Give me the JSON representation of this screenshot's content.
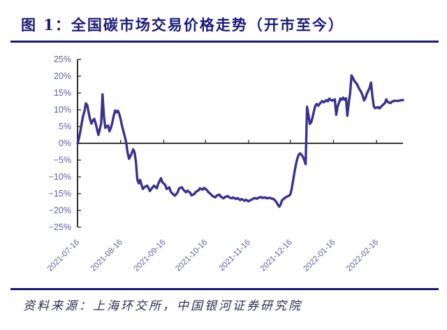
{
  "figure": {
    "title": "图 1：全国碳市场交易价格走势（开市至今）",
    "source_note": "资料来源：上海环交所，中国银河证券研究院"
  },
  "colors": {
    "accent_navy": "#1b1b78",
    "line": "#3a3190",
    "axis": "#1a1a1a",
    "tick_label": "#60609f",
    "background": "#ffffff"
  },
  "chart_data": {
    "type": "line",
    "title": "全国碳市场交易价格走势（开市至今）",
    "xlabel": "",
    "ylabel": "",
    "ylim": [
      -25,
      25
    ],
    "y_tick_step": 5,
    "y_tick_format": "percent",
    "grid": false,
    "legend": "none",
    "x_unit": "days_since_2021-07-16",
    "x_range_days": [
      0,
      234
    ],
    "x_ticks": [
      {
        "day": 0,
        "label": "2021-07-16"
      },
      {
        "day": 31,
        "label": "2021-08-16"
      },
      {
        "day": 62,
        "label": "2021-09-16"
      },
      {
        "day": 92,
        "label": "2021-10-16"
      },
      {
        "day": 123,
        "label": "2021-11-16"
      },
      {
        "day": 153,
        "label": "2021-12-16"
      },
      {
        "day": 184,
        "label": "2022-01-16"
      },
      {
        "day": 215,
        "label": "2022-02-16"
      }
    ],
    "series": [
      {
        "name": "price_change_percent",
        "color": "#3a3190",
        "points": [
          [
            0,
            0
          ],
          [
            1,
            1.5
          ],
          [
            2,
            3.5
          ],
          [
            3,
            6
          ],
          [
            4,
            8.2
          ],
          [
            5,
            9.6
          ],
          [
            6,
            11.9
          ],
          [
            7,
            11.4
          ],
          [
            8,
            9.2
          ],
          [
            9,
            7.2
          ],
          [
            10,
            5.9
          ],
          [
            11,
            6.8
          ],
          [
            12,
            7.3
          ],
          [
            13,
            6
          ],
          [
            14,
            4.3
          ],
          [
            15,
            2.5
          ],
          [
            16,
            4.2
          ],
          [
            17,
            6
          ],
          [
            18,
            14.6
          ],
          [
            19,
            8
          ],
          [
            20,
            4.6
          ],
          [
            21,
            5.1
          ],
          [
            22,
            5.3
          ],
          [
            23,
            3.6
          ],
          [
            24,
            4.6
          ],
          [
            25,
            6.2
          ],
          [
            26,
            8.2
          ],
          [
            27,
            9.8
          ],
          [
            28,
            9.2
          ],
          [
            29,
            9.7
          ],
          [
            30,
            8.8
          ],
          [
            31,
            7.2
          ],
          [
            32,
            5.2
          ],
          [
            33,
            3.6
          ],
          [
            34,
            2
          ],
          [
            35,
            0.2
          ],
          [
            36,
            -2.8
          ],
          [
            37,
            -4.6
          ],
          [
            38,
            -3.8
          ],
          [
            39,
            -2.9
          ],
          [
            40,
            -1.8
          ],
          [
            41,
            -2.6
          ],
          [
            42,
            -5.5
          ],
          [
            43,
            -10.8
          ],
          [
            44,
            -11.9
          ],
          [
            45,
            -10.9
          ],
          [
            46,
            -12.4
          ],
          [
            47,
            -13.6
          ],
          [
            48,
            -13.1
          ],
          [
            50,
            -12.6
          ],
          [
            51,
            -13.3
          ],
          [
            52,
            -14.2
          ],
          [
            54,
            -13.1
          ],
          [
            55,
            -12.6
          ],
          [
            57,
            -13.4
          ],
          [
            58,
            -12.1
          ],
          [
            60,
            -10.4
          ],
          [
            61,
            -11.6
          ],
          [
            63,
            -12.4
          ],
          [
            64,
            -13.6
          ],
          [
            66,
            -13.1
          ],
          [
            67,
            -14.4
          ],
          [
            69,
            -15.3
          ],
          [
            70,
            -15.6
          ],
          [
            72,
            -14.6
          ],
          [
            73,
            -13.4
          ],
          [
            75,
            -13.1
          ],
          [
            76,
            -13.8
          ],
          [
            78,
            -14.6
          ],
          [
            79,
            -14.1
          ],
          [
            81,
            -14.7
          ],
          [
            82,
            -15.5
          ],
          [
            84,
            -15.1
          ],
          [
            85,
            -14.5
          ],
          [
            87,
            -14
          ],
          [
            88,
            -13.4
          ],
          [
            90,
            -13.8
          ],
          [
            91,
            -13.3
          ],
          [
            93,
            -13.9
          ],
          [
            94,
            -14.5
          ],
          [
            96,
            -15.2
          ],
          [
            97,
            -15.7
          ],
          [
            99,
            -16.1
          ],
          [
            100,
            -15.6
          ],
          [
            102,
            -15.3
          ],
          [
            103,
            -15.9
          ],
          [
            105,
            -16.4
          ],
          [
            106,
            -16
          ],
          [
            108,
            -15.7
          ],
          [
            109,
            -16.1
          ],
          [
            111,
            -16.4
          ],
          [
            112,
            -16.1
          ],
          [
            114,
            -16.6
          ],
          [
            115,
            -16.3
          ],
          [
            117,
            -16.9
          ],
          [
            118,
            -16.6
          ],
          [
            120,
            -17.1
          ],
          [
            121,
            -16.8
          ],
          [
            123,
            -17.3
          ],
          [
            124,
            -17
          ],
          [
            126,
            -16.6
          ],
          [
            127,
            -16.3
          ],
          [
            129,
            -16.5
          ],
          [
            130,
            -16.2
          ],
          [
            132,
            -16
          ],
          [
            133,
            -16.3
          ],
          [
            135,
            -16.1
          ],
          [
            136,
            -16.4
          ],
          [
            138,
            -16.2
          ],
          [
            139,
            -16.4
          ],
          [
            141,
            -16.6
          ],
          [
            143,
            -17.5
          ],
          [
            144,
            -18.3
          ],
          [
            145,
            -18.9
          ],
          [
            146,
            -18.2
          ],
          [
            147,
            -17
          ],
          [
            149,
            -16.3
          ],
          [
            150,
            -16
          ],
          [
            151,
            -15.8
          ],
          [
            152,
            -15.6
          ],
          [
            153,
            -15.2
          ],
          [
            154,
            -13.5
          ],
          [
            155,
            -11
          ],
          [
            156,
            -8.5
          ],
          [
            157,
            -6.3
          ],
          [
            158,
            -4.6
          ],
          [
            159,
            -3.4
          ],
          [
            160,
            -3
          ],
          [
            161,
            -3.4
          ],
          [
            162,
            -4
          ],
          [
            163,
            -5
          ],
          [
            164,
            -6.2
          ],
          [
            165,
            10.9
          ],
          [
            166,
            8.5
          ],
          [
            167,
            5.8
          ],
          [
            168,
            6.3
          ],
          [
            169,
            7.8
          ],
          [
            170,
            9.6
          ],
          [
            171,
            11.2
          ],
          [
            172,
            11.7
          ],
          [
            173,
            11.2
          ],
          [
            175,
            12.2
          ],
          [
            176,
            12.6
          ],
          [
            177,
            12.2
          ],
          [
            179,
            12.9
          ],
          [
            180,
            12.5
          ],
          [
            181,
            13.3
          ],
          [
            183,
            12.7
          ],
          [
            185,
            13.1
          ],
          [
            186,
            8.5
          ],
          [
            187,
            11
          ],
          [
            188,
            12.1
          ],
          [
            189,
            13.4
          ],
          [
            190,
            13
          ],
          [
            191,
            13.6
          ],
          [
            192,
            13
          ],
          [
            193,
            13.4
          ],
          [
            194,
            8.2
          ],
          [
            195,
            12
          ],
          [
            196,
            15
          ],
          [
            197,
            20.2
          ],
          [
            198,
            19.5
          ],
          [
            199,
            18.6
          ],
          [
            201,
            17.6
          ],
          [
            202,
            16.6
          ],
          [
            204,
            15.2
          ],
          [
            205,
            14.2
          ],
          [
            206,
            12.8
          ],
          [
            207,
            13.5
          ],
          [
            208,
            14.8
          ],
          [
            210,
            16.5
          ],
          [
            211,
            18.1
          ],
          [
            212,
            14
          ],
          [
            213,
            11
          ],
          [
            214,
            10.5
          ],
          [
            216,
            10.8
          ],
          [
            217,
            10.4
          ],
          [
            219,
            11.2
          ],
          [
            221,
            12
          ],
          [
            222,
            13.1
          ],
          [
            223,
            12.3
          ],
          [
            225,
            12
          ],
          [
            226,
            12.4
          ],
          [
            228,
            12.7
          ],
          [
            230,
            12.6
          ],
          [
            232,
            12.8
          ],
          [
            234,
            12.9
          ]
        ]
      }
    ]
  }
}
